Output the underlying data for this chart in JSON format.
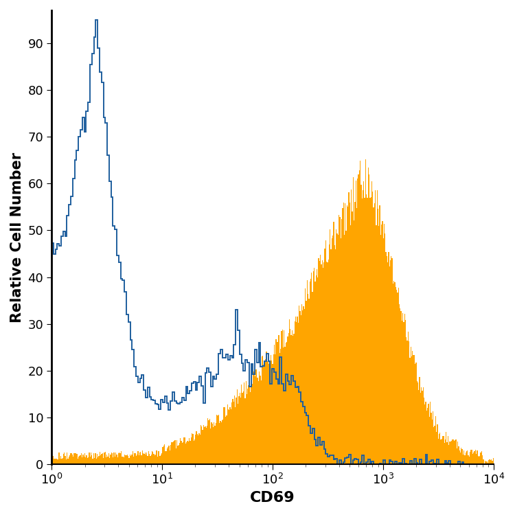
{
  "xlabel": "CD69",
  "ylabel": "Relative Cell Number",
  "xlim_log": [
    1,
    10000
  ],
  "ylim": [
    0,
    97
  ],
  "yticks": [
    0,
    10,
    20,
    30,
    40,
    50,
    60,
    70,
    80,
    90
  ],
  "blue_color": "#1F5F9E",
  "orange_color": "#FFA500",
  "background_color": "#ffffff",
  "xlabel_fontsize": 16,
  "ylabel_fontsize": 15,
  "tick_fontsize": 13
}
